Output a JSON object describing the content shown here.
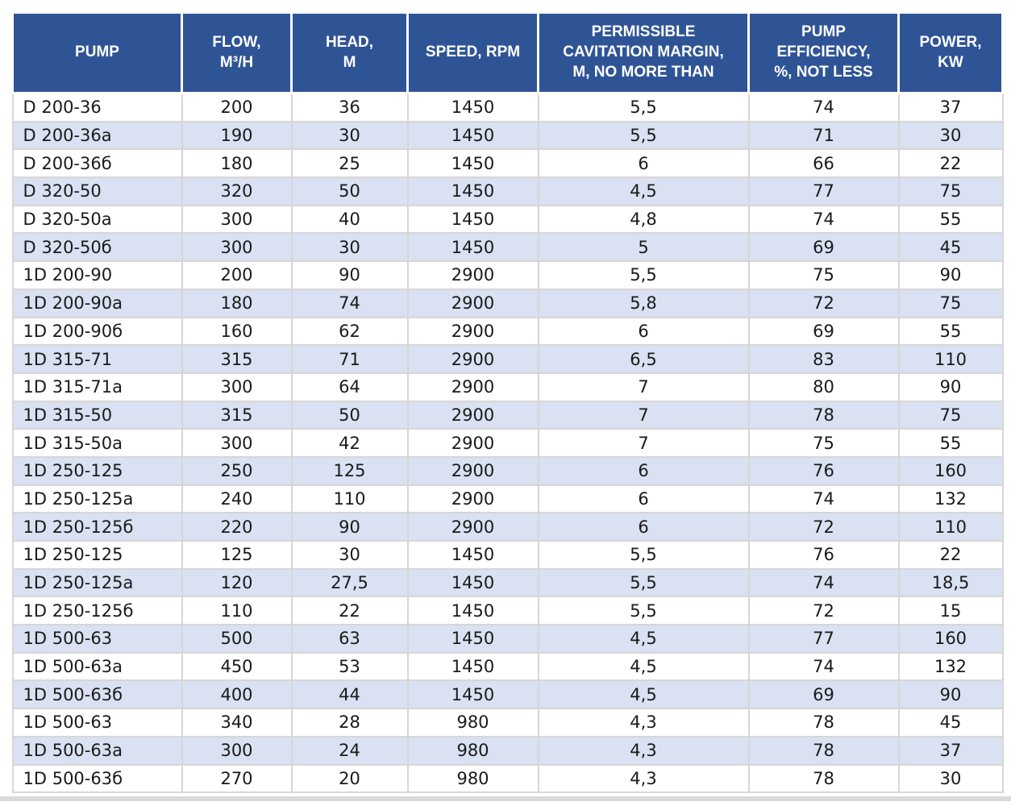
{
  "colors": {
    "header_bg": "#2F5496",
    "header_text": "#FFFFFF",
    "row_odd_bg": "#FFFFFF",
    "row_even_bg": "#D9E1F2",
    "cell_text": "#1A1A1A",
    "grid_line": "#D6D6D6",
    "bottom_divider": "#DADADA",
    "page_bg": "#FFFFFF"
  },
  "chart_data": {
    "type": "table",
    "grid": true,
    "legend": false,
    "columns": [
      {
        "id": "pump",
        "label": "PUMP"
      },
      {
        "id": "flow",
        "label": "FLOW,\nM³/H"
      },
      {
        "id": "head",
        "label": "HEAD,\nM"
      },
      {
        "id": "speed",
        "label": "SPEED, RPM"
      },
      {
        "id": "cavitation",
        "label": "PERMISSIBLE\nCAVITATION MARGIN,\nM, NO MORE THAN"
      },
      {
        "id": "efficiency",
        "label": "PUMP\nEFFICIENCY,\n%, NOT LESS"
      },
      {
        "id": "power",
        "label": "POWER,\nKW"
      }
    ],
    "rows": [
      [
        "D 200-36",
        "200",
        "36",
        "1450",
        "5,5",
        "74",
        "37"
      ],
      [
        "D 200-36a",
        "190",
        "30",
        "1450",
        "5,5",
        "71",
        "30"
      ],
      [
        "D 200-36б",
        "180",
        "25",
        "1450",
        "6",
        "66",
        "22"
      ],
      [
        "D 320-50",
        "320",
        "50",
        "1450",
        "4,5",
        "77",
        "75"
      ],
      [
        "D 320-50a",
        "300",
        "40",
        "1450",
        "4,8",
        "74",
        "55"
      ],
      [
        "D 320-50б",
        "300",
        "30",
        "1450",
        "5",
        "69",
        "45"
      ],
      [
        "1D 200-90",
        "200",
        "90",
        "2900",
        "5,5",
        "75",
        "90"
      ],
      [
        "1D 200-90a",
        "180",
        "74",
        "2900",
        "5,8",
        "72",
        "75"
      ],
      [
        "1D 200-90б",
        "160",
        "62",
        "2900",
        "6",
        "69",
        "55"
      ],
      [
        "1D 315-71",
        "315",
        "71",
        "2900",
        "6,5",
        "83",
        "110"
      ],
      [
        "1D 315-71a",
        "300",
        "64",
        "2900",
        "7",
        "80",
        "90"
      ],
      [
        "1D 315-50",
        "315",
        "50",
        "2900",
        "7",
        "78",
        "75"
      ],
      [
        "1D 315-50a",
        "300",
        "42",
        "2900",
        "7",
        "75",
        "55"
      ],
      [
        "1D 250-125",
        "250",
        "125",
        "2900",
        "6",
        "76",
        "160"
      ],
      [
        "1D 250-125a",
        "240",
        "110",
        "2900",
        "6",
        "74",
        "132"
      ],
      [
        "1D 250-125б",
        "220",
        "90",
        "2900",
        "6",
        "72",
        "110"
      ],
      [
        "1D 250-125",
        "125",
        "30",
        "1450",
        "5,5",
        "76",
        "22"
      ],
      [
        "1D 250-125a",
        "120",
        "27,5",
        "1450",
        "5,5",
        "74",
        "18,5"
      ],
      [
        "1D 250-125б",
        "110",
        "22",
        "1450",
        "5,5",
        "72",
        "15"
      ],
      [
        "1D 500-63",
        "500",
        "63",
        "1450",
        "4,5",
        "77",
        "160"
      ],
      [
        "1D 500-63a",
        "450",
        "53",
        "1450",
        "4,5",
        "74",
        "132"
      ],
      [
        "1D 500-63б",
        "400",
        "44",
        "1450",
        "4,5",
        "69",
        "90"
      ],
      [
        "1D 500-63",
        "340",
        "28",
        "980",
        "4,3",
        "78",
        "45"
      ],
      [
        "1D 500-63a",
        "300",
        "24",
        "980",
        "4,3",
        "78",
        "37"
      ],
      [
        "1D 500-63б",
        "270",
        "20",
        "980",
        "4,3",
        "78",
        "30"
      ]
    ]
  }
}
